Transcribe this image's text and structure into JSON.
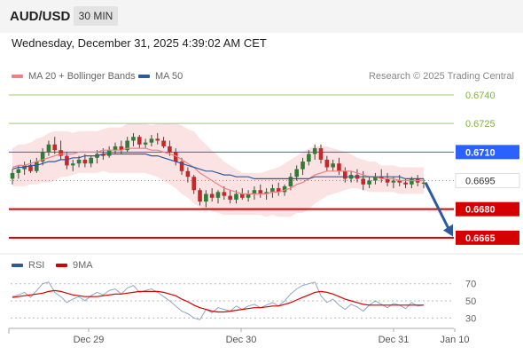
{
  "header": {
    "symbol": "AUD/USD",
    "timeframe": "30 MIN"
  },
  "timestamp": "Wednesday, December 31, 2025 4:39:02 AM CET",
  "legend": {
    "ma20_label": "MA 20 + Bollinger Bands",
    "ma50_label": "MA 50",
    "copyright": "Research © 2025 Trading Central"
  },
  "rsi_legend": {
    "rsi_label": "RSI",
    "ma_label": "9MA"
  },
  "colors": {
    "ma20": "#f08080",
    "ma50": "#2c5aa0",
    "bullish": "#2e7d32",
    "bearish": "#c62828",
    "target": "#d50000",
    "resistance": "#9ccc65",
    "pivot": "#2962ff",
    "current": "#333333"
  },
  "chart_data": {
    "type": "line",
    "levels": [
      {
        "value": 0.674,
        "label": "0.6740",
        "role": "resistance"
      },
      {
        "value": 0.6725,
        "label": "0.6725",
        "role": "resistance"
      },
      {
        "value": 0.671,
        "label": "0.6710",
        "role": "pivot"
      },
      {
        "value": 0.6695,
        "label": "0.6695",
        "role": "current"
      },
      {
        "value": 0.668,
        "label": "0.6680",
        "role": "support"
      },
      {
        "value": 0.6665,
        "label": "0.6665",
        "role": "support"
      }
    ],
    "forecast_arrow": {
      "from": 0.6694,
      "to": 0.6667,
      "direction": "down"
    },
    "x_ticks": [
      "Dec 29",
      "Dec 30",
      "Dec 31",
      "Jan 10"
    ],
    "rsi_ticks": [
      70,
      50,
      30
    ],
    "price_range": [
      0.6657,
      0.6747
    ],
    "rsi_range": [
      22,
      78
    ],
    "candles": [
      [
        0.6696,
        0.6701,
        0.6693,
        0.6699
      ],
      [
        0.6699,
        0.6703,
        0.6696,
        0.6701
      ],
      [
        0.6701,
        0.6705,
        0.6698,
        0.6703
      ],
      [
        0.6703,
        0.6706,
        0.6699,
        0.67
      ],
      [
        0.67,
        0.6707,
        0.6699,
        0.6705
      ],
      [
        0.6705,
        0.6712,
        0.6703,
        0.671
      ],
      [
        0.671,
        0.6716,
        0.6708,
        0.6714
      ],
      [
        0.6714,
        0.6718,
        0.6709,
        0.6711
      ],
      [
        0.6711,
        0.6716,
        0.6706,
        0.6708
      ],
      [
        0.6708,
        0.671,
        0.6701,
        0.6703
      ],
      [
        0.6703,
        0.6706,
        0.67,
        0.6704
      ],
      [
        0.6704,
        0.6708,
        0.6702,
        0.6706
      ],
      [
        0.6706,
        0.6709,
        0.6702,
        0.6704
      ],
      [
        0.6704,
        0.6708,
        0.6702,
        0.6707
      ],
      [
        0.6707,
        0.6711,
        0.6704,
        0.6709
      ],
      [
        0.6709,
        0.6712,
        0.6706,
        0.6708
      ],
      [
        0.6708,
        0.6713,
        0.6707,
        0.6711
      ],
      [
        0.6711,
        0.6715,
        0.6709,
        0.6713
      ],
      [
        0.6713,
        0.6716,
        0.6709,
        0.6711
      ],
      [
        0.6711,
        0.6718,
        0.671,
        0.6716
      ],
      [
        0.6716,
        0.672,
        0.6713,
        0.6718
      ],
      [
        0.6718,
        0.6719,
        0.6712,
        0.6714
      ],
      [
        0.6714,
        0.6717,
        0.6712,
        0.6715
      ],
      [
        0.6715,
        0.6719,
        0.6713,
        0.6717
      ],
      [
        0.6717,
        0.672,
        0.6714,
        0.6716
      ],
      [
        0.6716,
        0.6718,
        0.6712,
        0.6713
      ],
      [
        0.6713,
        0.6716,
        0.6708,
        0.671
      ],
      [
        0.671,
        0.6712,
        0.6703,
        0.6705
      ],
      [
        0.6705,
        0.6707,
        0.6698,
        0.67
      ],
      [
        0.67,
        0.6702,
        0.6694,
        0.6697
      ],
      [
        0.6697,
        0.6698,
        0.6688,
        0.669
      ],
      [
        0.669,
        0.6691,
        0.6682,
        0.6684
      ],
      [
        0.6684,
        0.669,
        0.6681,
        0.6688
      ],
      [
        0.6688,
        0.6691,
        0.6684,
        0.6686
      ],
      [
        0.6686,
        0.669,
        0.6683,
        0.6689
      ],
      [
        0.6689,
        0.6692,
        0.6685,
        0.6687
      ],
      [
        0.6687,
        0.669,
        0.6683,
        0.6685
      ],
      [
        0.6685,
        0.669,
        0.6683,
        0.6688
      ],
      [
        0.6688,
        0.6691,
        0.6685,
        0.6686
      ],
      [
        0.6686,
        0.669,
        0.6684,
        0.6688
      ],
      [
        0.6688,
        0.6692,
        0.6685,
        0.669
      ],
      [
        0.669,
        0.6693,
        0.6686,
        0.6688
      ],
      [
        0.6688,
        0.6691,
        0.6685,
        0.6689
      ],
      [
        0.6689,
        0.6693,
        0.6686,
        0.6691
      ],
      [
        0.6691,
        0.6694,
        0.6687,
        0.6689
      ],
      [
        0.6689,
        0.6693,
        0.6687,
        0.6692
      ],
      [
        0.6692,
        0.6699,
        0.669,
        0.6697
      ],
      [
        0.6697,
        0.6703,
        0.6695,
        0.6701
      ],
      [
        0.6701,
        0.6707,
        0.6698,
        0.6705
      ],
      [
        0.6705,
        0.6711,
        0.6703,
        0.6709
      ],
      [
        0.6709,
        0.6714,
        0.6706,
        0.6712
      ],
      [
        0.6712,
        0.6714,
        0.6704,
        0.6706
      ],
      [
        0.6706,
        0.6708,
        0.67,
        0.6702
      ],
      [
        0.6702,
        0.6706,
        0.67,
        0.6704
      ],
      [
        0.6704,
        0.6707,
        0.6698,
        0.67
      ],
      [
        0.67,
        0.6702,
        0.6694,
        0.6696
      ],
      [
        0.6696,
        0.67,
        0.6694,
        0.6698
      ],
      [
        0.6698,
        0.6701,
        0.6694,
        0.6696
      ],
      [
        0.6696,
        0.67,
        0.669,
        0.6693
      ],
      [
        0.6693,
        0.6697,
        0.6691,
        0.6695
      ],
      [
        0.6695,
        0.6699,
        0.6693,
        0.6697
      ],
      [
        0.6697,
        0.6701,
        0.6694,
        0.6696
      ],
      [
        0.6696,
        0.6699,
        0.6692,
        0.6694
      ],
      [
        0.6694,
        0.6697,
        0.6691,
        0.6695
      ],
      [
        0.6695,
        0.6698,
        0.6692,
        0.6694
      ],
      [
        0.6694,
        0.6696,
        0.6691,
        0.6693
      ],
      [
        0.6693,
        0.6697,
        0.6691,
        0.6696
      ],
      [
        0.6696,
        0.6698,
        0.6692,
        0.6694
      ],
      [
        0.6694,
        0.6696,
        0.6691,
        0.6694
      ]
    ],
    "ma20": [
      0.6702,
      0.6703,
      0.6703,
      0.6704,
      0.6705,
      0.6706,
      0.6707,
      0.6708,
      0.6709,
      0.6709,
      0.6709,
      0.671,
      0.671,
      0.671,
      0.671,
      0.6711,
      0.6711,
      0.6711,
      0.6711,
      0.6712,
      0.6712,
      0.6712,
      0.6712,
      0.6711,
      0.6711,
      0.671,
      0.6709,
      0.6708,
      0.6706,
      0.6704,
      0.6702,
      0.6699,
      0.6697,
      0.6695,
      0.6693,
      0.6691,
      0.669,
      0.6689,
      0.6688,
      0.6688,
      0.6688,
      0.6688,
      0.6688,
      0.6689,
      0.6689,
      0.669,
      0.6691,
      0.6693,
      0.6694,
      0.6696,
      0.6698,
      0.6699,
      0.67,
      0.67,
      0.67,
      0.67,
      0.67,
      0.6699,
      0.6698,
      0.6697,
      0.6697,
      0.6696,
      0.6696,
      0.6696,
      0.6695,
      0.6695,
      0.6695,
      0.6695,
      0.6695
    ],
    "ma50": [
      0.6701,
      0.6702,
      0.6702,
      0.6703,
      0.6703,
      0.6704,
      0.6705,
      0.6705,
      0.6706,
      0.6706,
      0.6707,
      0.6707,
      0.6708,
      0.6708,
      0.6708,
      0.6709,
      0.6709,
      0.6709,
      0.6709,
      0.6709,
      0.6709,
      0.6709,
      0.6709,
      0.6708,
      0.6708,
      0.6707,
      0.6706,
      0.6705,
      0.6704,
      0.6703,
      0.6702,
      0.6701,
      0.67,
      0.67,
      0.6699,
      0.6698,
      0.6698,
      0.6697,
      0.6697,
      0.6697,
      0.6696,
      0.6696,
      0.6696,
      0.6696,
      0.6696,
      0.6696,
      0.6696,
      0.6696,
      0.6696,
      0.6696,
      0.6697,
      0.6697,
      0.6697,
      0.6697,
      0.6697,
      0.6697,
      0.6697,
      0.6697,
      0.6697,
      0.6697,
      0.6697,
      0.6697,
      0.6697,
      0.6697,
      0.6697,
      0.6696,
      0.6696,
      0.6696,
      0.6696
    ],
    "bb_width": [
      0.001,
      0.0011,
      0.0011,
      0.0011,
      0.0012,
      0.0012,
      0.0013,
      0.0013,
      0.0012,
      0.0012,
      0.0011,
      0.0011,
      0.0011,
      0.0011,
      0.0011,
      0.0011,
      0.0012,
      0.0012,
      0.0012,
      0.0013,
      0.0013,
      0.0013,
      0.0013,
      0.0013,
      0.0014,
      0.0015,
      0.0016,
      0.0017,
      0.0018,
      0.0018,
      0.0019,
      0.0018,
      0.0017,
      0.0016,
      0.0015,
      0.0014,
      0.0013,
      0.0012,
      0.0011,
      0.0011,
      0.0011,
      0.0011,
      0.0012,
      0.0012,
      0.0013,
      0.0014,
      0.0015,
      0.0015,
      0.0016,
      0.0016,
      0.0015,
      0.0014,
      0.0013,
      0.0012,
      0.0011,
      0.001,
      0.0009,
      0.0008,
      0.0008,
      0.0008,
      0.0008,
      0.0007,
      0.0007,
      0.0007,
      0.0007,
      0.0007,
      0.0007,
      0.0007,
      0.0007
    ],
    "rsi": [
      55,
      57,
      60,
      54,
      62,
      70,
      72,
      60,
      55,
      48,
      52,
      55,
      50,
      56,
      60,
      57,
      62,
      64,
      58,
      65,
      68,
      60,
      62,
      64,
      60,
      55,
      50,
      44,
      38,
      35,
      30,
      28,
      40,
      36,
      42,
      40,
      38,
      44,
      40,
      44,
      46,
      42,
      45,
      48,
      44,
      50,
      58,
      64,
      68,
      70,
      72,
      56,
      48,
      52,
      45,
      40,
      46,
      43,
      38,
      45,
      50,
      46,
      42,
      47,
      45,
      41,
      48,
      44,
      45
    ],
    "rsi_ma": [
      54,
      55,
      56,
      57,
      58,
      59,
      61,
      62,
      61,
      59,
      57,
      56,
      55,
      55,
      55,
      56,
      57,
      58,
      58,
      59,
      60,
      61,
      61,
      61,
      61,
      60,
      58,
      56,
      52,
      49,
      45,
      42,
      40,
      38,
      37,
      37,
      38,
      39,
      40,
      41,
      42,
      42,
      43,
      44,
      44,
      46,
      48,
      51,
      54,
      57,
      60,
      61,
      60,
      58,
      55,
      52,
      50,
      48,
      46,
      45,
      45,
      45,
      45,
      45,
      45,
      45,
      45,
      45,
      45
    ]
  }
}
